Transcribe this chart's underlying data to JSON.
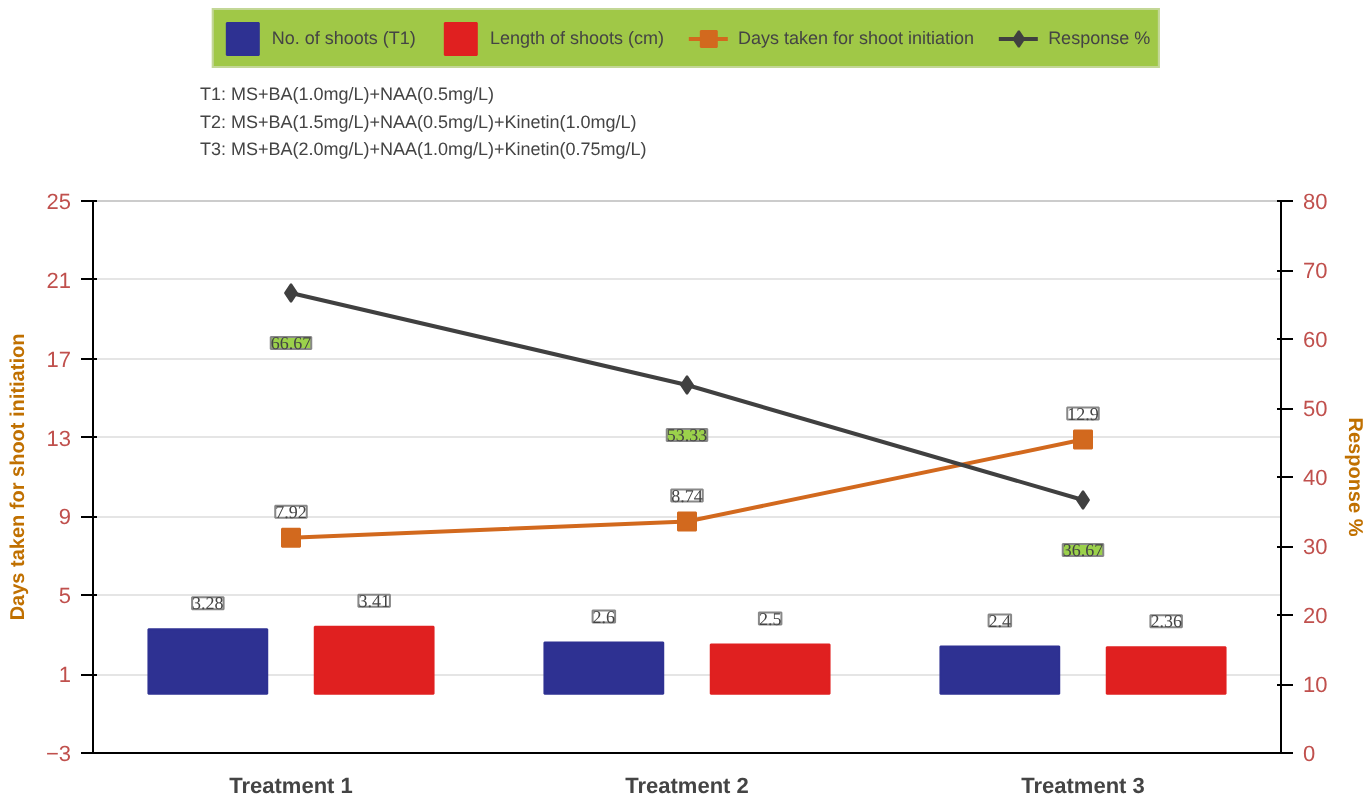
{
  "chart_data": {
    "type": "bar",
    "categories": [
      "Treatment 1",
      "Treatment 2",
      "Treatment 3"
    ],
    "annotations": [
      "T1: MS+BA(1.0mg/L)+NAA(0.5mg/L)",
      "T2: MS+BA(1.5mg/L)+NAA(0.5mg/L)+Kinetin(1.0mg/L)",
      "T3: MS+BA(2.0mg/L)+NAA(1.0mg/L)+Kinetin(0.75mg/L)"
    ],
    "ylabel": "Days taken for shoot initiation",
    "y2label": "Response %",
    "ylim": [
      -3,
      25
    ],
    "yticks": [
      -3,
      1,
      5,
      9,
      13,
      17,
      21,
      25
    ],
    "y2lim": [
      0,
      80
    ],
    "y2ticks": [
      0,
      10,
      20,
      30,
      40,
      50,
      60,
      70,
      80
    ],
    "grid": "y",
    "legend": "top",
    "data_labels": true,
    "series": [
      {
        "name": "No. of shoots (T1)",
        "color": "#2e3192",
        "values": [
          3.28,
          2.6,
          2.4
        ]
      },
      {
        "name": "Length of shoots (cm)",
        "color": "#e02020",
        "values": [
          3.41,
          2.5,
          2.36
        ]
      },
      {
        "name": "Days taken for shoot initiation",
        "type": "line",
        "color": "#d2691e",
        "marker": "square",
        "values": [
          7.92,
          8.74,
          12.9
        ]
      },
      {
        "name": "Response %",
        "type": "line",
        "color": "#404040",
        "marker": "diamond",
        "axis": "y2",
        "values": [
          66.67,
          53.33,
          36.67
        ]
      }
    ]
  }
}
